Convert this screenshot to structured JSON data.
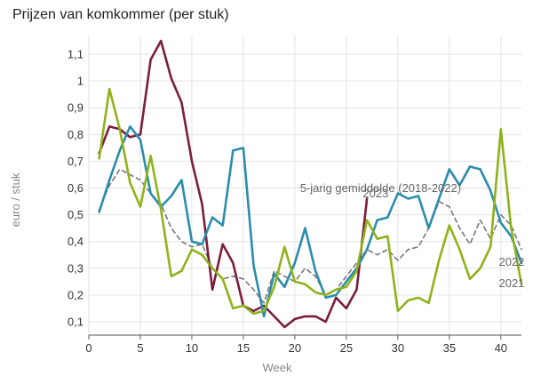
{
  "chart_data": {
    "type": "line",
    "title": "Prijzen van komkommer (per stuk)",
    "xlabel": "Week",
    "ylabel": "euro / stuk",
    "xlim": [
      0,
      42
    ],
    "ylim": [
      0.05,
      1.17
    ],
    "xticks": [
      0,
      5,
      10,
      15,
      20,
      25,
      30,
      35,
      40
    ],
    "yticks": [
      0.1,
      0.2,
      0.3,
      0.4,
      0.5,
      0.6,
      0.7,
      0.8,
      0.9,
      1.0,
      1.1
    ],
    "ytick_labels": [
      "0,1",
      "0,2",
      "0,3",
      "0,4",
      "0,5",
      "0,6",
      "0,7",
      "0,8",
      "0,9",
      "1",
      "1,1"
    ],
    "grid": true,
    "series": [
      {
        "name": "5-jarig gemiddelde (2018-2022)",
        "label": "5-jarig gemiddelde (2018-2022)",
        "color": "#777777",
        "dashed": true,
        "x": [
          1,
          2,
          3,
          4,
          5,
          6,
          7,
          8,
          9,
          10,
          11,
          12,
          13,
          14,
          15,
          16,
          17,
          18,
          19,
          20,
          21,
          22,
          23,
          24,
          25,
          26,
          27,
          28,
          29,
          30,
          31,
          32,
          33,
          34,
          35,
          36,
          37,
          38,
          39,
          40,
          41,
          42
        ],
        "values": [
          0.52,
          0.61,
          0.67,
          0.65,
          0.63,
          0.58,
          0.54,
          0.45,
          0.4,
          0.38,
          0.39,
          0.3,
          0.26,
          0.27,
          0.26,
          0.22,
          0.17,
          0.29,
          0.27,
          0.25,
          0.3,
          0.27,
          0.2,
          0.22,
          0.27,
          0.32,
          0.37,
          0.35,
          0.37,
          0.33,
          0.37,
          0.38,
          0.45,
          0.55,
          0.53,
          0.45,
          0.39,
          0.48,
          0.41,
          0.5,
          0.46,
          0.37
        ]
      },
      {
        "name": "2023",
        "label": "2023",
        "color": "#7b1d3e",
        "dashed": false,
        "x": [
          1,
          2,
          3,
          4,
          5,
          6,
          7,
          8,
          9,
          10,
          11,
          12,
          13,
          14,
          15,
          16,
          17,
          18,
          19,
          20,
          21,
          22,
          23,
          24,
          25,
          26,
          27
        ],
        "values": [
          0.73,
          0.83,
          0.82,
          0.79,
          0.8,
          1.08,
          1.15,
          1.01,
          0.92,
          0.7,
          0.54,
          0.22,
          0.39,
          0.32,
          0.16,
          0.14,
          0.16,
          0.12,
          0.08,
          0.11,
          0.12,
          0.12,
          0.1,
          0.19,
          0.15,
          0.22,
          0.56
        ]
      },
      {
        "name": "2022",
        "label": "2022",
        "color": "#2b8cab",
        "dashed": false,
        "x": [
          1,
          2,
          3,
          4,
          5,
          6,
          7,
          8,
          9,
          10,
          11,
          12,
          13,
          14,
          15,
          16,
          17,
          18,
          19,
          20,
          21,
          22,
          23,
          24,
          25,
          26,
          27,
          28,
          29,
          30,
          31,
          32,
          33,
          34,
          35,
          36,
          37,
          38,
          39,
          40,
          41,
          42
        ],
        "values": [
          0.51,
          0.63,
          0.74,
          0.83,
          0.78,
          0.58,
          0.53,
          0.57,
          0.63,
          0.4,
          0.39,
          0.49,
          0.46,
          0.74,
          0.75,
          0.31,
          0.12,
          0.28,
          0.23,
          0.32,
          0.45,
          0.29,
          0.19,
          0.2,
          0.25,
          0.3,
          0.37,
          0.48,
          0.49,
          0.58,
          0.56,
          0.57,
          0.45,
          0.56,
          0.67,
          0.61,
          0.68,
          0.67,
          0.59,
          0.47,
          0.42,
          0.32
        ]
      },
      {
        "name": "2021",
        "label": "2021",
        "color": "#8fb21a",
        "dashed": false,
        "x": [
          1,
          2,
          3,
          4,
          5,
          6,
          7,
          8,
          9,
          10,
          11,
          12,
          13,
          14,
          15,
          16,
          17,
          18,
          19,
          20,
          21,
          22,
          23,
          24,
          25,
          26,
          27,
          28,
          29,
          30,
          31,
          32,
          33,
          34,
          35,
          36,
          37,
          38,
          39,
          40,
          41,
          42
        ],
        "values": [
          0.71,
          0.97,
          0.82,
          0.62,
          0.53,
          0.72,
          0.52,
          0.27,
          0.29,
          0.37,
          0.35,
          0.3,
          0.26,
          0.15,
          0.16,
          0.13,
          0.14,
          0.23,
          0.38,
          0.25,
          0.24,
          0.21,
          0.2,
          0.22,
          0.23,
          0.29,
          0.48,
          0.41,
          0.42,
          0.14,
          0.18,
          0.19,
          0.17,
          0.33,
          0.46,
          0.37,
          0.26,
          0.3,
          0.38,
          0.82,
          0.45,
          0.24
        ]
      }
    ]
  }
}
